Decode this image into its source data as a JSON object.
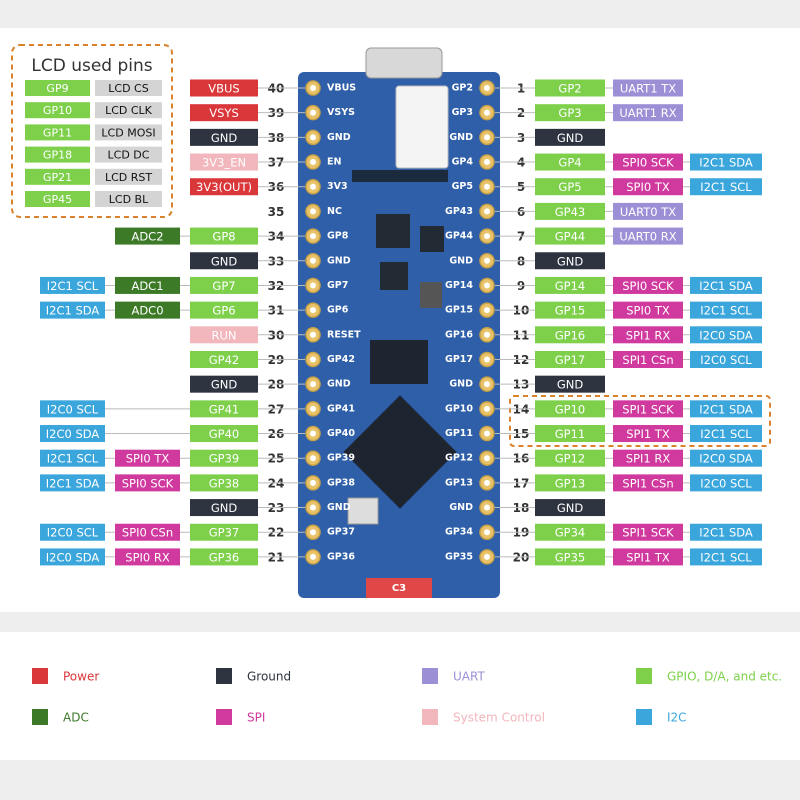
{
  "lcd_box": {
    "title": "LCD used pins",
    "rows": [
      [
        "GP9",
        "LCD CS"
      ],
      [
        "GP10",
        "LCD CLK"
      ],
      [
        "GP11",
        "LCD MOSI"
      ],
      [
        "GP18",
        "LCD DC"
      ],
      [
        "GP21",
        "LCD RST"
      ],
      [
        "GP45",
        "LCD BL"
      ]
    ],
    "pin_color": "#7ed04b",
    "lcd_color": "#d4d4d4"
  },
  "board": {
    "marking": "C3"
  },
  "left_pins": [
    {
      "number": 40,
      "board_label": "VBUS",
      "labels": [
        {
          "text": "VBUS",
          "color": "#d9373a"
        }
      ]
    },
    {
      "number": 39,
      "board_label": "VSYS",
      "labels": [
        {
          "text": "VSYS",
          "color": "#d9373a"
        }
      ]
    },
    {
      "number": 38,
      "board_label": "GND",
      "labels": [
        {
          "text": "GND",
          "color": "#2d3440"
        }
      ]
    },
    {
      "number": 37,
      "board_label": "EN",
      "labels": [
        {
          "text": "3V3_EN",
          "color": "#f2b6bd"
        }
      ]
    },
    {
      "number": 36,
      "board_label": "3V3",
      "labels": [
        {
          "text": "3V3(OUT)",
          "color": "#d9373a"
        }
      ]
    },
    {
      "number": 35,
      "board_label": "NC",
      "labels": []
    },
    {
      "number": 34,
      "board_label": "GP8",
      "labels": [
        {
          "text": "GP8",
          "color": "#7ed04b"
        },
        {
          "text": "ADC2",
          "color": "#3d7a28"
        }
      ]
    },
    {
      "number": 33,
      "board_label": "GND",
      "labels": [
        {
          "text": "GND",
          "color": "#2d3440"
        }
      ]
    },
    {
      "number": 32,
      "board_label": "GP7",
      "labels": [
        {
          "text": "GP7",
          "color": "#7ed04b"
        },
        {
          "text": "ADC1",
          "color": "#3d7a28"
        },
        {
          "text": "I2C1 SCL",
          "color": "#3ba6dc"
        }
      ]
    },
    {
      "number": 31,
      "board_label": "GP6",
      "labels": [
        {
          "text": "GP6",
          "color": "#7ed04b"
        },
        {
          "text": "ADC0",
          "color": "#3d7a28"
        },
        {
          "text": "I2C1 SDA",
          "color": "#3ba6dc"
        }
      ]
    },
    {
      "number": 30,
      "board_label": "RESET",
      "labels": [
        {
          "text": "RUN",
          "color": "#f2b6bd"
        }
      ]
    },
    {
      "number": 29,
      "board_label": "GP42",
      "labels": [
        {
          "text": "GP42",
          "color": "#7ed04b"
        }
      ]
    },
    {
      "number": 28,
      "board_label": "GND",
      "labels": [
        {
          "text": "GND",
          "color": "#2d3440"
        }
      ]
    },
    {
      "number": 27,
      "board_label": "GP41",
      "labels": [
        {
          "text": "GP41",
          "color": "#7ed04b"
        },
        null,
        {
          "text": "I2C0 SCL",
          "color": "#3ba6dc"
        }
      ]
    },
    {
      "number": 26,
      "board_label": "GP40",
      "labels": [
        {
          "text": "GP40",
          "color": "#7ed04b"
        },
        null,
        {
          "text": "I2C0 SDA",
          "color": "#3ba6dc"
        }
      ]
    },
    {
      "number": 25,
      "board_label": "GP39",
      "labels": [
        {
          "text": "GP39",
          "color": "#7ed04b"
        },
        {
          "text": "SPI0 TX",
          "color": "#d0399e"
        },
        {
          "text": "I2C1 SCL",
          "color": "#3ba6dc"
        }
      ]
    },
    {
      "number": 24,
      "board_label": "GP38",
      "labels": [
        {
          "text": "GP38",
          "color": "#7ed04b"
        },
        {
          "text": "SPI0 SCK",
          "color": "#d0399e"
        },
        {
          "text": "I2C1 SDA",
          "color": "#3ba6dc"
        }
      ]
    },
    {
      "number": 23,
      "board_label": "GND",
      "labels": [
        {
          "text": "GND",
          "color": "#2d3440"
        }
      ]
    },
    {
      "number": 22,
      "board_label": "GP37",
      "labels": [
        {
          "text": "GP37",
          "color": "#7ed04b"
        },
        {
          "text": "SPI0 CSn",
          "color": "#d0399e"
        },
        {
          "text": "I2C0 SCL",
          "color": "#3ba6dc"
        }
      ]
    },
    {
      "number": 21,
      "board_label": "GP36",
      "labels": [
        {
          "text": "GP36",
          "color": "#7ed04b"
        },
        {
          "text": "SPI0 RX",
          "color": "#d0399e"
        },
        {
          "text": "I2C0 SDA",
          "color": "#3ba6dc"
        }
      ]
    }
  ],
  "right_pins": [
    {
      "number": 1,
      "board_label": "GP2",
      "labels": [
        {
          "text": "GP2",
          "color": "#7ed04b"
        },
        {
          "text": "UART1 TX",
          "color": "#9d8fd6"
        }
      ]
    },
    {
      "number": 2,
      "board_label": "GP3",
      "labels": [
        {
          "text": "GP3",
          "color": "#7ed04b"
        },
        {
          "text": "UART1 RX",
          "color": "#9d8fd6"
        }
      ]
    },
    {
      "number": 3,
      "board_label": "GND",
      "labels": [
        {
          "text": "GND",
          "color": "#2d3440"
        }
      ]
    },
    {
      "number": 4,
      "board_label": "GP4",
      "labels": [
        {
          "text": "GP4",
          "color": "#7ed04b"
        },
        {
          "text": "SPI0 SCK",
          "color": "#d0399e"
        },
        {
          "text": "I2C1 SDA",
          "color": "#3ba6dc"
        }
      ]
    },
    {
      "number": 5,
      "board_label": "GP5",
      "labels": [
        {
          "text": "GP5",
          "color": "#7ed04b"
        },
        {
          "text": "SPI0 TX",
          "color": "#d0399e"
        },
        {
          "text": "I2C1 SCL",
          "color": "#3ba6dc"
        }
      ]
    },
    {
      "number": 6,
      "board_label": "GP43",
      "labels": [
        {
          "text": "GP43",
          "color": "#7ed04b"
        },
        {
          "text": "UART0 TX",
          "color": "#9d8fd6"
        }
      ]
    },
    {
      "number": 7,
      "board_label": "GP44",
      "labels": [
        {
          "text": "GP44",
          "color": "#7ed04b"
        },
        {
          "text": "UART0 RX",
          "color": "#9d8fd6"
        }
      ]
    },
    {
      "number": 8,
      "board_label": "GND",
      "labels": [
        {
          "text": "GND",
          "color": "#2d3440"
        }
      ]
    },
    {
      "number": 9,
      "board_label": "GP14",
      "labels": [
        {
          "text": "GP14",
          "color": "#7ed04b"
        },
        {
          "text": "SPI0 SCK",
          "color": "#d0399e"
        },
        {
          "text": "I2C1 SDA",
          "color": "#3ba6dc"
        }
      ]
    },
    {
      "number": 10,
      "board_label": "GP15",
      "labels": [
        {
          "text": "GP15",
          "color": "#7ed04b"
        },
        {
          "text": "SPI0 TX",
          "color": "#d0399e"
        },
        {
          "text": "I2C1 SCL",
          "color": "#3ba6dc"
        }
      ]
    },
    {
      "number": 11,
      "board_label": "GP16",
      "labels": [
        {
          "text": "GP16",
          "color": "#7ed04b"
        },
        {
          "text": "SPI1 RX",
          "color": "#d0399e"
        },
        {
          "text": "I2C0 SDA",
          "color": "#3ba6dc"
        }
      ]
    },
    {
      "number": 12,
      "board_label": "GP17",
      "labels": [
        {
          "text": "GP17",
          "color": "#7ed04b"
        },
        {
          "text": "SPI1 CSn",
          "color": "#d0399e"
        },
        {
          "text": "I2C0 SCL",
          "color": "#3ba6dc"
        }
      ]
    },
    {
      "number": 13,
      "board_label": "GND",
      "labels": [
        {
          "text": "GND",
          "color": "#2d3440"
        }
      ]
    },
    {
      "number": 14,
      "board_label": "GP10",
      "labels": [
        {
          "text": "GP10",
          "color": "#7ed04b"
        },
        {
          "text": "SPI1 SCK",
          "color": "#d0399e"
        },
        {
          "text": "I2C1 SDA",
          "color": "#3ba6dc"
        }
      ]
    },
    {
      "number": 15,
      "board_label": "GP11",
      "labels": [
        {
          "text": "GP11",
          "color": "#7ed04b"
        },
        {
          "text": "SPI1 TX",
          "color": "#d0399e"
        },
        {
          "text": "I2C1 SCL",
          "color": "#3ba6dc"
        }
      ]
    },
    {
      "number": 16,
      "board_label": "GP12",
      "labels": [
        {
          "text": "GP12",
          "color": "#7ed04b"
        },
        {
          "text": "SPI1 RX",
          "color": "#d0399e"
        },
        {
          "text": "I2C0 SDA",
          "color": "#3ba6dc"
        }
      ]
    },
    {
      "number": 17,
      "board_label": "GP13",
      "labels": [
        {
          "text": "GP13",
          "color": "#7ed04b"
        },
        {
          "text": "SPI1 CSn",
          "color": "#d0399e"
        },
        {
          "text": "I2C0 SCL",
          "color": "#3ba6dc"
        }
      ]
    },
    {
      "number": 18,
      "board_label": "GND",
      "labels": [
        {
          "text": "GND",
          "color": "#2d3440"
        }
      ]
    },
    {
      "number": 19,
      "board_label": "GP34",
      "labels": [
        {
          "text": "GP34",
          "color": "#7ed04b"
        },
        {
          "text": "SPI1 SCK",
          "color": "#d0399e"
        },
        {
          "text": "I2C1 SDA",
          "color": "#3ba6dc"
        }
      ]
    },
    {
      "number": 20,
      "board_label": "GP35",
      "labels": [
        {
          "text": "GP35",
          "color": "#7ed04b"
        },
        {
          "text": "SPI1 TX",
          "color": "#d0399e"
        },
        {
          "text": "I2C1 SCL",
          "color": "#3ba6dc"
        }
      ]
    }
  ],
  "legend": [
    {
      "text": "Power",
      "color": "#d9373a"
    },
    {
      "text": "Ground",
      "color": "#2d3440"
    },
    {
      "text": "UART",
      "color": "#9d8fd6"
    },
    {
      "text": "GPIO, D/A, and etc.",
      "color": "#7ed04b"
    },
    {
      "text": "ADC",
      "color": "#3d7a28"
    },
    {
      "text": "SPI",
      "color": "#d0399e"
    },
    {
      "text": "System Control",
      "color": "#f2b6bd"
    },
    {
      "text": "I2C",
      "color": "#3ba6dc"
    }
  ]
}
